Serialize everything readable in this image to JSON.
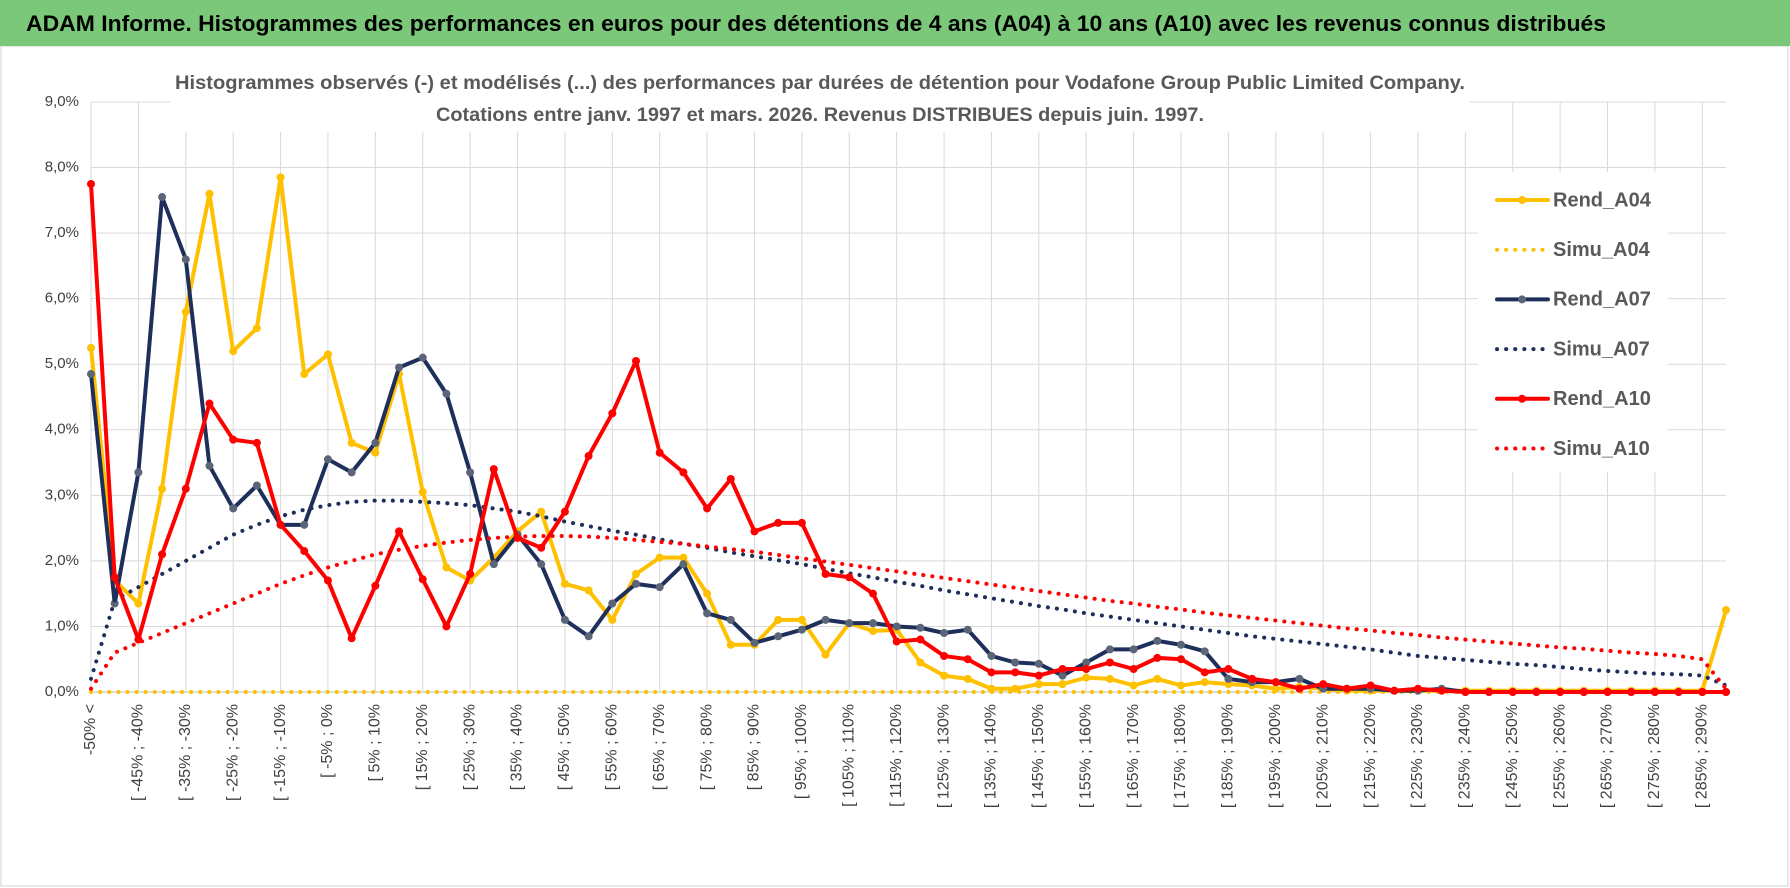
{
  "chart_data": {
    "type": "line",
    "title": "ADAM Informe. Histogrammes des performances en euros pour des détentions de 4 ans (A04) à 10 ans (A10) avec les revenus connus distribués",
    "subtitle": [
      "Histogrammes observés (-) et modélisés (...) des performances par durées de détention pour Vodafone Group Public Limited Company.",
      "Cotations entre janv. 1997 et mars. 2026.  Revenus DISTRIBUES depuis juin. 1997."
    ],
    "categories": [
      "-50% <",
      null,
      "[ -45% ; -40%",
      null,
      "[ -35% ; -30%",
      null,
      "[ -25% ; -20%",
      null,
      "[ -15% ; -10%",
      null,
      "[ -5% ; 0%",
      null,
      "[ 5% ; 10%",
      null,
      "[ 15% ; 20%",
      null,
      "[ 25% ; 30%",
      null,
      "[ 35% ; 40%",
      null,
      "[ 45% ; 50%",
      null,
      "[ 55% ; 60%",
      null,
      "[ 65% ; 70%",
      null,
      "[ 75% ; 80%",
      null,
      "[ 85% ; 90%",
      null,
      "[ 95% ; 100%",
      null,
      "[ 105% ; 110%",
      null,
      "[ 115% ; 120%",
      null,
      "[ 125% ; 130%",
      null,
      "[ 135% ; 140%",
      null,
      "[ 145% ; 150%",
      null,
      "[ 155% ; 160%",
      null,
      "[ 165% ; 170%",
      null,
      "[ 175% ; 180%",
      null,
      "[ 185% ; 190%",
      null,
      "[ 195% ; 200%",
      null,
      "[ 205% ; 210%",
      null,
      "[ 215% ; 220%",
      null,
      "[ 225% ; 230%",
      null,
      "[ 235% ; 240%",
      null,
      "[ 245% ; 250%",
      null,
      "[ 255% ; 260%",
      null,
      "[ 265% ; 270%",
      null,
      "[ 275% ; 280%",
      null,
      "[ 285% ; 290%",
      null
    ],
    "series": [
      {
        "name": "Rend_A04",
        "color": "#FFC000",
        "dash": "solid",
        "markers": true,
        "values": [
          5.25,
          1.7,
          1.35,
          3.1,
          5.8,
          7.6,
          5.2,
          5.55,
          7.85,
          4.85,
          5.15,
          3.8,
          3.65,
          4.85,
          3.05,
          1.9,
          1.7,
          2.05,
          2.45,
          2.75,
          1.65,
          1.55,
          1.1,
          1.8,
          2.05,
          2.05,
          1.5,
          0.72,
          0.72,
          1.1,
          1.1,
          0.57,
          1.05,
          0.93,
          0.95,
          0.45,
          0.25,
          0.2,
          0.05,
          0.05,
          0.12,
          0.12,
          0.22,
          0.2,
          0.1,
          0.2,
          0.1,
          0.15,
          0.12,
          0.1,
          0.05,
          0.08,
          0.05,
          0.02,
          0.02,
          0.02,
          0.02,
          0.02,
          0.02,
          0.02,
          0.02,
          0.02,
          0.02,
          0.02,
          0.02,
          0.02,
          0.02,
          0.02,
          0.02,
          1.25
        ]
      },
      {
        "name": "Simu_A04",
        "color": "#FFC000",
        "dash": "dotted",
        "markers": false,
        "values": [
          0,
          0,
          0,
          0,
          0,
          0,
          0,
          0,
          0,
          0,
          0,
          0,
          0,
          0,
          0,
          0,
          0,
          0,
          0,
          0,
          0,
          0,
          0,
          0,
          0,
          0,
          0,
          0,
          0,
          0,
          0,
          0,
          0,
          0,
          0,
          0,
          0,
          0,
          0,
          0,
          0,
          0,
          0,
          0,
          0,
          0,
          0,
          0,
          0,
          0,
          0,
          0,
          0,
          0,
          0,
          0,
          0,
          0,
          0,
          0,
          0,
          0,
          0,
          0,
          0,
          0,
          0,
          0,
          0,
          0
        ]
      },
      {
        "name": "Rend_A07",
        "color": "#1F2F5C",
        "dash": "solid",
        "markers": true,
        "values": [
          4.85,
          1.35,
          3.35,
          7.55,
          6.6,
          3.45,
          2.8,
          3.15,
          2.55,
          2.55,
          3.55,
          3.35,
          3.8,
          4.95,
          5.1,
          4.55,
          3.35,
          1.95,
          2.4,
          1.95,
          1.1,
          0.85,
          1.35,
          1.65,
          1.6,
          1.95,
          1.2,
          1.1,
          0.75,
          0.85,
          0.95,
          1.1,
          1.05,
          1.05,
          1.0,
          0.98,
          0.9,
          0.95,
          0.55,
          0.45,
          0.43,
          0.25,
          0.45,
          0.65,
          0.65,
          0.78,
          0.72,
          0.62,
          0.2,
          0.15,
          0.15,
          0.2,
          0.05,
          0.05,
          0.05,
          0.02,
          0.02,
          0.05,
          0,
          0,
          0,
          0,
          0,
          0,
          0,
          0,
          0,
          0,
          0,
          0
        ]
      },
      {
        "name": "Simu_A07",
        "color": "#1F2F5C",
        "dash": "dotted",
        "markers": false,
        "values": [
          0.2,
          1.4,
          1.6,
          1.8,
          2.0,
          2.2,
          2.4,
          2.55,
          2.68,
          2.78,
          2.85,
          2.9,
          2.92,
          2.92,
          2.9,
          2.88,
          2.85,
          2.8,
          2.75,
          2.68,
          2.6,
          2.53,
          2.46,
          2.4,
          2.33,
          2.26,
          2.2,
          2.13,
          2.07,
          2.01,
          1.95,
          1.88,
          1.81,
          1.75,
          1.68,
          1.62,
          1.55,
          1.49,
          1.43,
          1.37,
          1.31,
          1.26,
          1.2,
          1.15,
          1.1,
          1.05,
          1.0,
          0.95,
          0.9,
          0.85,
          0.81,
          0.77,
          0.73,
          0.69,
          0.65,
          0.6,
          0.55,
          0.52,
          0.49,
          0.46,
          0.43,
          0.41,
          0.38,
          0.35,
          0.32,
          0.3,
          0.28,
          0.27,
          0.25,
          0.1
        ]
      },
      {
        "name": "Rend_A10",
        "color": "#FF0000",
        "dash": "solid",
        "markers": true,
        "values": [
          7.75,
          1.75,
          0.8,
          2.1,
          3.1,
          4.4,
          3.85,
          3.8,
          2.55,
          2.15,
          1.7,
          0.82,
          1.62,
          2.45,
          1.72,
          1.0,
          1.8,
          3.4,
          2.35,
          2.2,
          2.75,
          3.6,
          4.25,
          5.05,
          3.65,
          3.35,
          2.8,
          3.25,
          2.45,
          2.58,
          2.58,
          1.8,
          1.75,
          1.5,
          0.77,
          0.8,
          0.55,
          0.5,
          0.3,
          0.3,
          0.25,
          0.35,
          0.35,
          0.45,
          0.35,
          0.52,
          0.5,
          0.3,
          0.35,
          0.2,
          0.15,
          0.05,
          0.12,
          0.05,
          0.1,
          0.02,
          0.05,
          0.02,
          0,
          0,
          0,
          0,
          0,
          0,
          0,
          0,
          0,
          0,
          0,
          0
        ]
      },
      {
        "name": "Simu_A10",
        "color": "#FF0000",
        "dash": "dotted",
        "markers": false,
        "values": [
          0.05,
          0.6,
          0.75,
          0.9,
          1.05,
          1.2,
          1.35,
          1.5,
          1.65,
          1.78,
          1.9,
          2.0,
          2.1,
          2.17,
          2.23,
          2.28,
          2.32,
          2.35,
          2.37,
          2.38,
          2.38,
          2.37,
          2.35,
          2.32,
          2.29,
          2.26,
          2.22,
          2.18,
          2.14,
          2.09,
          2.04,
          1.99,
          1.94,
          1.89,
          1.84,
          1.79,
          1.74,
          1.69,
          1.64,
          1.59,
          1.54,
          1.49,
          1.44,
          1.39,
          1.35,
          1.3,
          1.26,
          1.21,
          1.17,
          1.13,
          1.09,
          1.05,
          1.01,
          0.97,
          0.94,
          0.9,
          0.87,
          0.83,
          0.8,
          0.77,
          0.74,
          0.71,
          0.68,
          0.66,
          0.63,
          0.6,
          0.58,
          0.55,
          0.5,
          0.05
        ]
      }
    ],
    "ylim": [
      0,
      9
    ],
    "yticks": [
      {
        "value": 0,
        "label": "0,0%"
      },
      {
        "value": 1,
        "label": "1,0%"
      },
      {
        "value": 2,
        "label": "2,0%"
      },
      {
        "value": 3,
        "label": "3,0%"
      },
      {
        "value": 4,
        "label": "4,0%"
      },
      {
        "value": 5,
        "label": "5,0%"
      },
      {
        "value": 6,
        "label": "6,0%"
      },
      {
        "value": 7,
        "label": "7,0%"
      },
      {
        "value": 8,
        "label": "8,0%"
      },
      {
        "value": 9,
        "label": "9,0%"
      }
    ],
    "grid": true,
    "legend": "right"
  }
}
